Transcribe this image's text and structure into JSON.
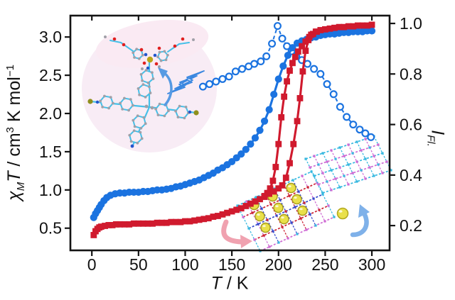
{
  "figure": {
    "xlabel": {
      "variable": "T",
      "rest": " / K"
    },
    "ylabel_left": {
      "chi": "χ",
      "chi_sub": "M",
      "t_var": "T",
      "unit_a": " / cm",
      "sup_a": "3",
      "unit_b": " K mol",
      "sup_b": "−1"
    },
    "ylabel_right": {
      "variable": "I",
      "sub": "Fl."
    }
  },
  "chart_data": {
    "type": "line",
    "title": "",
    "x_axis": {
      "label": "T / K",
      "ticks": [
        "0",
        "50",
        "100",
        "150",
        "200",
        "250",
        "300"
      ],
      "range": [
        -23,
        319
      ]
    },
    "y_axis_left": {
      "label": "χMT / cm3 K mol−1",
      "ticks": [
        "0.5",
        "1.0",
        "1.5",
        "2.0",
        "2.5",
        "3.0"
      ],
      "range": [
        0.21,
        3.28
      ]
    },
    "y_axis_right": {
      "label": "IFl.",
      "ticks": [
        "0.2",
        "0.4",
        "0.6",
        "0.8",
        "1.0"
      ],
      "range": [
        0.102,
        1.031
      ]
    },
    "grid": false,
    "legend": "none",
    "series": [
      {
        "name": "fluorescence-intensity",
        "axis": "right",
        "marker": "open-circle",
        "line": "dashed",
        "color": "#1b73e0",
        "x": [
          119,
          126,
          133,
          140,
          147,
          154,
          161,
          168,
          174,
          181,
          187,
          193,
          199,
          204,
          209,
          214,
          219,
          225,
          231,
          238,
          245,
          252,
          259,
          266,
          273,
          280,
          287,
          293,
          299
        ],
        "y": [
          0.75,
          0.76,
          0.77,
          0.78,
          0.79,
          0.81,
          0.82,
          0.83,
          0.84,
          0.85,
          0.87,
          0.92,
          0.99,
          0.94,
          0.91,
          0.89,
          0.87,
          0.855,
          0.84,
          0.82,
          0.8,
          0.76,
          0.72,
          0.67,
          0.63,
          0.6,
          0.58,
          0.565,
          0.55
        ]
      },
      {
        "name": "chiMT-gradual-blue",
        "axis": "left",
        "marker": "circle",
        "line": "solid",
        "color": "#1b73e0",
        "x": [
          2,
          4,
          6,
          8,
          10,
          13,
          16,
          20,
          25,
          30,
          35,
          40,
          45,
          50,
          55,
          60,
          65,
          70,
          75,
          80,
          85,
          90,
          95,
          100,
          105,
          110,
          115,
          120,
          125,
          130,
          135,
          140,
          145,
          150,
          155,
          160,
          165,
          170,
          175,
          180,
          185,
          190,
          195,
          200,
          205,
          210,
          215,
          220,
          225,
          230,
          235,
          240,
          245,
          250,
          255,
          260,
          265,
          270,
          275,
          280,
          285,
          290,
          295,
          300
        ],
        "y": [
          0.64,
          0.69,
          0.73,
          0.77,
          0.81,
          0.86,
          0.9,
          0.93,
          0.95,
          0.96,
          0.96,
          0.97,
          0.97,
          0.97,
          0.98,
          0.98,
          0.99,
          1.0,
          1.0,
          1.01,
          1.02,
          1.04,
          1.05,
          1.07,
          1.09,
          1.11,
          1.13,
          1.16,
          1.19,
          1.22,
          1.26,
          1.29,
          1.33,
          1.37,
          1.42,
          1.47,
          1.53,
          1.6,
          1.68,
          1.78,
          1.9,
          2.05,
          2.25,
          2.45,
          2.62,
          2.76,
          2.86,
          2.92,
          2.95,
          2.97,
          2.99,
          3.0,
          3.02,
          3.03,
          3.04,
          3.04,
          3.05,
          3.06,
          3.06,
          3.07,
          3.07,
          3.07,
          3.08,
          3.08
        ]
      },
      {
        "name": "chiMT-red-heating",
        "axis": "left",
        "marker": "square",
        "line": "solid",
        "color": "#d01a2e",
        "x": [
          2,
          4,
          6,
          8,
          10,
          14,
          18,
          22,
          26,
          30,
          35,
          40,
          45,
          50,
          55,
          60,
          65,
          70,
          75,
          80,
          85,
          90,
          95,
          100,
          105,
          110,
          115,
          120,
          125,
          130,
          135,
          140,
          145,
          150,
          155,
          160,
          165,
          170,
          175,
          180,
          185,
          190,
          195,
          200,
          204,
          208,
          212,
          216,
          220,
          223,
          226,
          229,
          232,
          235,
          240,
          245,
          250,
          255,
          260,
          265,
          270,
          275,
          280,
          285,
          290,
          295,
          300
        ],
        "y": [
          0.41,
          0.46,
          0.49,
          0.51,
          0.52,
          0.53,
          0.54,
          0.54,
          0.55,
          0.55,
          0.55,
          0.55,
          0.56,
          0.56,
          0.56,
          0.56,
          0.56,
          0.57,
          0.57,
          0.57,
          0.58,
          0.58,
          0.58,
          0.59,
          0.59,
          0.6,
          0.61,
          0.62,
          0.63,
          0.65,
          0.66,
          0.68,
          0.7,
          0.72,
          0.74,
          0.76,
          0.79,
          0.82,
          0.85,
          0.88,
          0.91,
          0.95,
          0.98,
          1.02,
          1.06,
          1.16,
          1.35,
          1.6,
          1.9,
          2.2,
          2.55,
          2.82,
          2.96,
          3.03,
          3.07,
          3.09,
          3.1,
          3.11,
          3.12,
          3.13,
          3.13,
          3.14,
          3.14,
          3.15,
          3.15,
          3.15,
          3.16
        ]
      },
      {
        "name": "chiMT-red-cooling",
        "axis": "left",
        "marker": "square",
        "line": "solid",
        "color": "#d01a2e",
        "x": [
          185,
          188,
          191,
          194,
          197,
          200,
          203,
          206,
          209,
          212,
          215,
          218,
          221,
          225,
          229,
          233,
          237,
          241
        ],
        "y": [
          0.92,
          0.96,
          1.02,
          1.12,
          1.3,
          1.6,
          1.95,
          2.22,
          2.42,
          2.56,
          2.66,
          2.74,
          2.81,
          2.88,
          2.94,
          3.0,
          3.04,
          3.07
        ]
      }
    ]
  },
  "colors": {
    "blue": "#1b73e0",
    "red": "#d01a2e",
    "axis": "#141414",
    "cyan_bond": "#45c0e8",
    "magenta": "#cf6ad4",
    "lattice_red": "#cc2233",
    "lattice_blue": "#3448cc",
    "lattice_cyan": "#35b8e0",
    "yellow_sphere": "#e9e04a",
    "olive_atom": "#8f8f1d",
    "gray_atom": "#a0a0a8",
    "oxygen_red": "#e02020",
    "nitrogen_blue": "#2255cc",
    "metal_yellow": "#b9a616",
    "pink_blob": "#f8ecf5",
    "pink_blob2": "#faeaf3",
    "pink_arrow": "#f0a2b0",
    "light_blue_arrow": "#7fb1e9",
    "bolt_blue": "#3a87e0"
  }
}
